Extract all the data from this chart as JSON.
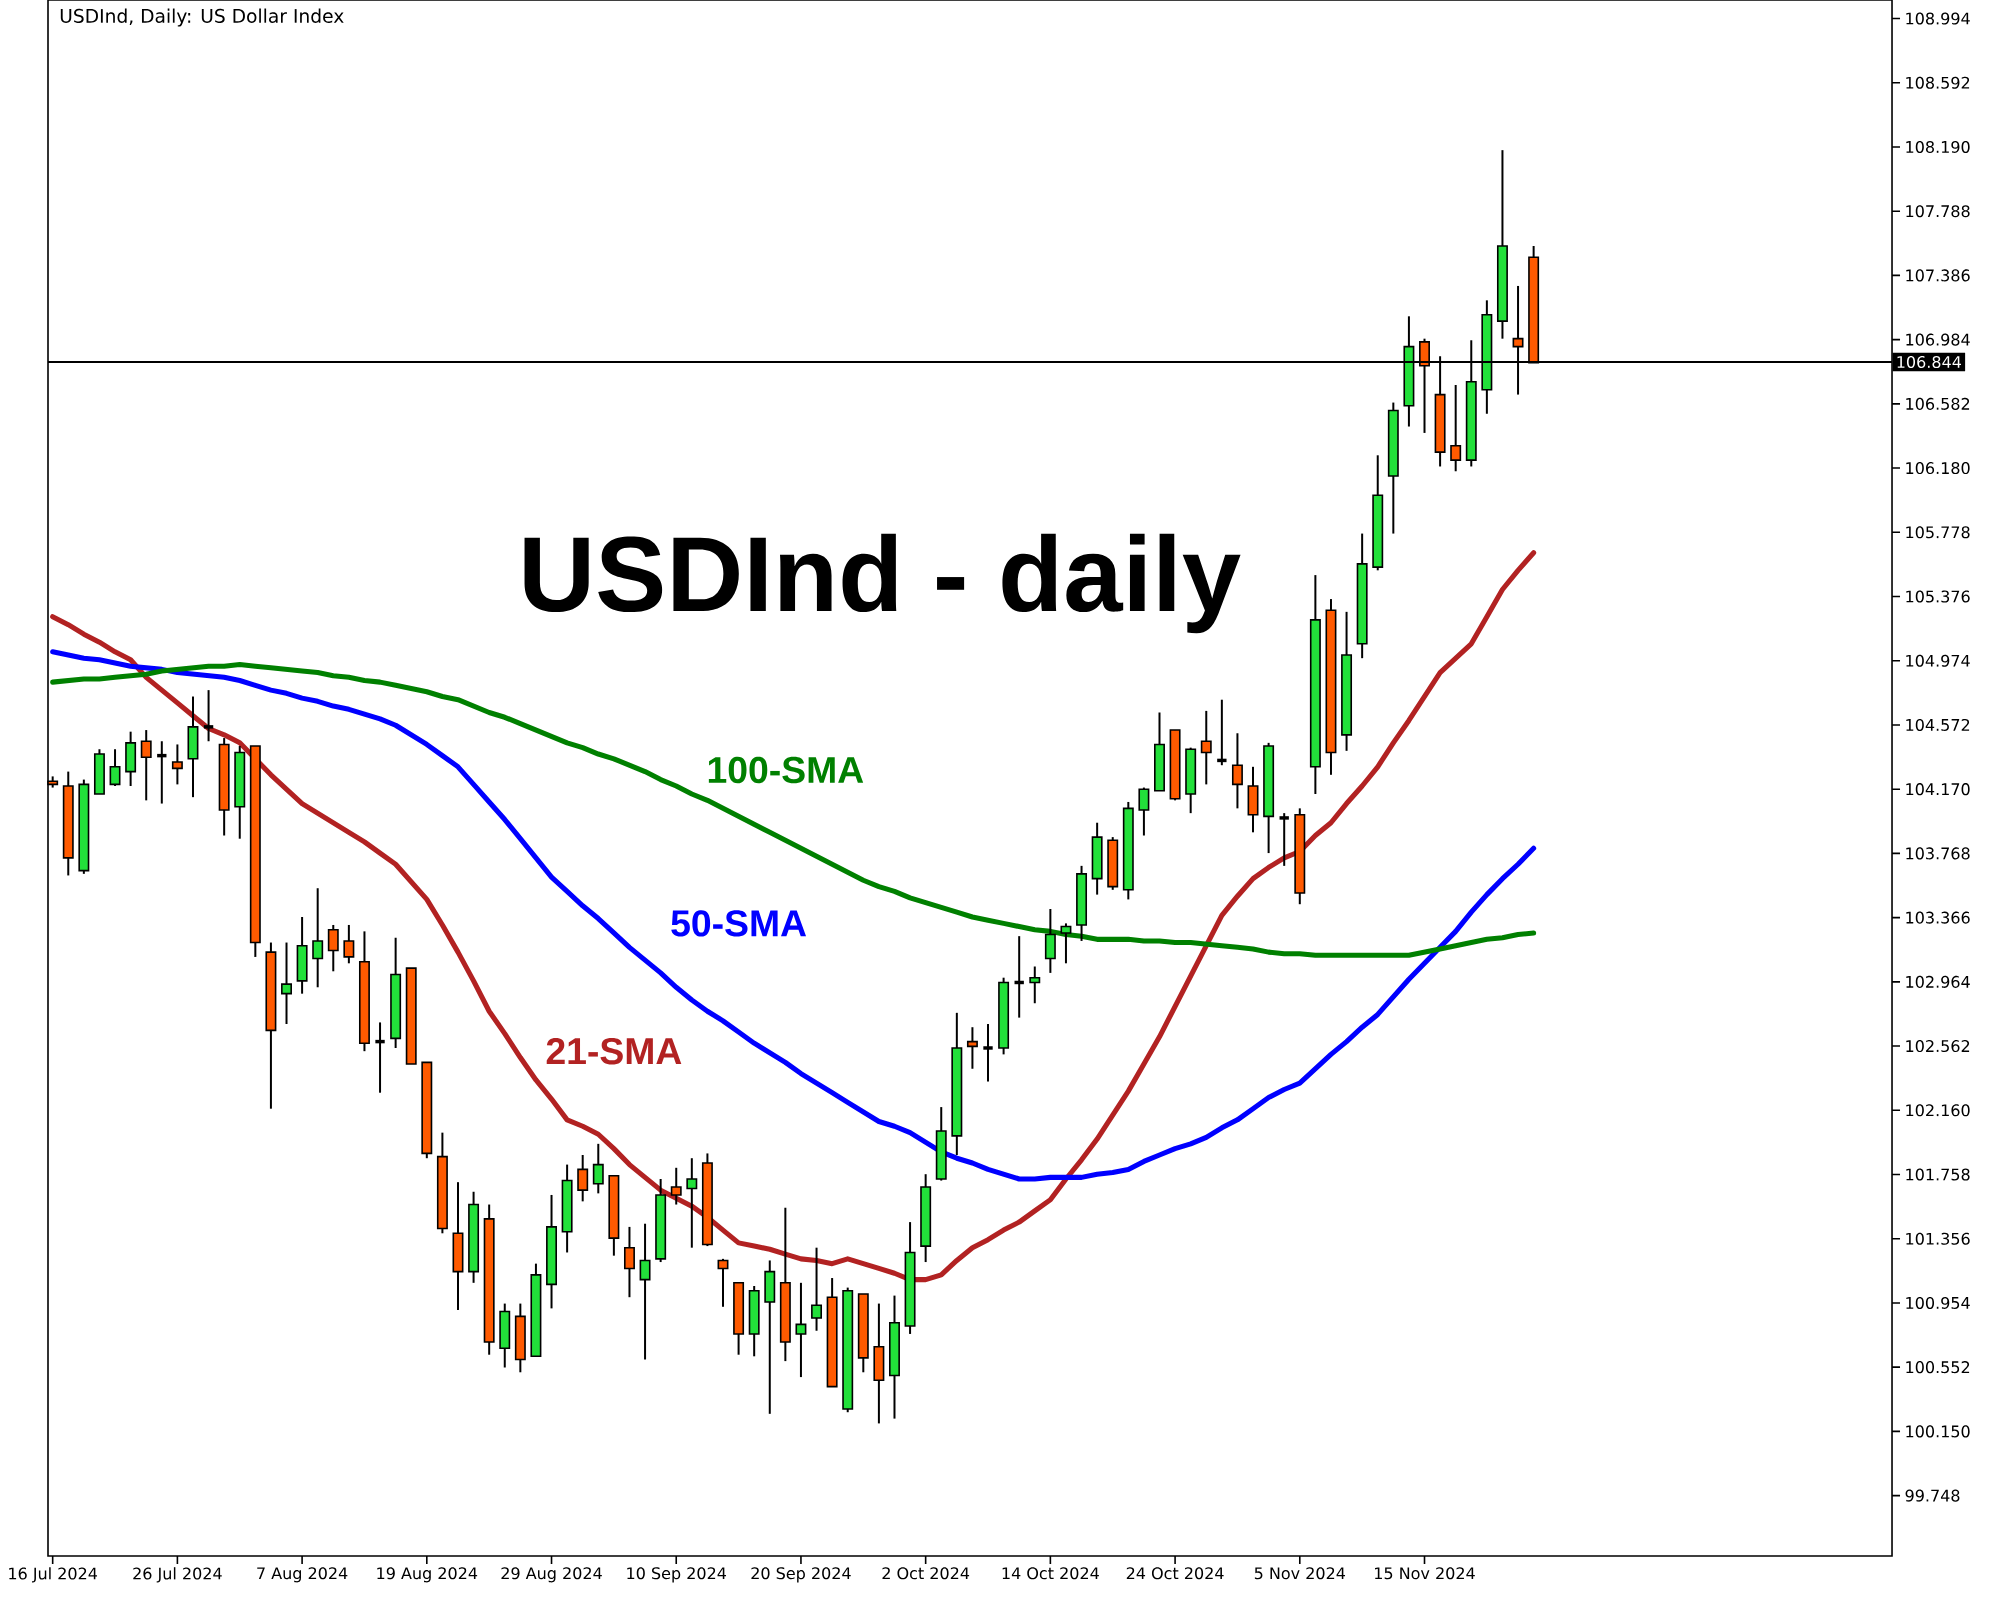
{
  "chart_data": {
    "type": "candlestick",
    "title": "USDInd - daily",
    "subtitle": "USDInd, Daily:  US Dollar Index",
    "categories": [
      "16 Jul 2024",
      null,
      null,
      null,
      null,
      null,
      null,
      null,
      "26 Jul 2024",
      null,
      null,
      null,
      null,
      null,
      null,
      null,
      "7 Aug 2024",
      null,
      null,
      null,
      null,
      null,
      null,
      null,
      "19 Aug 2024",
      null,
      null,
      null,
      null,
      null,
      null,
      null,
      "29 Aug 2024",
      null,
      null,
      null,
      null,
      null,
      null,
      null,
      "10 Sep 2024",
      null,
      null,
      null,
      null,
      null,
      null,
      null,
      "20 Sep 2024",
      null,
      null,
      null,
      null,
      null,
      null,
      null,
      "2 Oct 2024",
      null,
      null,
      null,
      null,
      null,
      null,
      null,
      "14 Oct 2024",
      null,
      null,
      null,
      null,
      null,
      null,
      null,
      "24 Oct 2024",
      null,
      null,
      null,
      null,
      null,
      null,
      null,
      "5 Nov 2024",
      null,
      null,
      null,
      null,
      null,
      null,
      null,
      "15 Nov 2024",
      null,
      null,
      null,
      null,
      null,
      null,
      null
    ],
    "ohlc": [
      [
        104.22,
        104.25,
        104.18,
        104.2
      ],
      [
        104.19,
        104.28,
        103.63,
        103.74
      ],
      [
        103.66,
        104.23,
        103.64,
        104.2
      ],
      [
        104.14,
        104.42,
        104.14,
        104.39
      ],
      [
        104.2,
        104.42,
        104.19,
        104.31
      ],
      [
        104.28,
        104.53,
        104.19,
        104.46
      ],
      [
        104.47,
        104.54,
        104.1,
        104.37
      ],
      [
        104.38,
        104.47,
        104.08,
        104.38
      ],
      [
        104.34,
        104.45,
        104.2,
        104.3
      ],
      [
        104.36,
        104.75,
        104.12,
        104.56
      ],
      [
        104.56,
        104.79,
        104.47,
        104.56
      ],
      [
        104.45,
        104.49,
        103.88,
        104.04
      ],
      [
        104.06,
        104.44,
        103.86,
        104.4
      ],
      [
        104.44,
        104.44,
        103.12,
        103.21
      ],
      [
        103.15,
        103.21,
        102.17,
        102.66
      ],
      [
        102.89,
        103.21,
        102.7,
        102.95
      ],
      [
        102.97,
        103.37,
        102.89,
        103.19
      ],
      [
        103.11,
        103.55,
        102.93,
        103.22
      ],
      [
        103.29,
        103.32,
        103.03,
        103.16
      ],
      [
        103.22,
        103.32,
        103.08,
        103.12
      ],
      [
        103.09,
        103.28,
        102.53,
        102.58
      ],
      [
        102.59,
        102.71,
        102.27,
        102.59
      ],
      [
        102.61,
        103.24,
        102.55,
        103.01
      ],
      [
        103.05,
        103.05,
        102.45,
        102.45
      ],
      [
        102.46,
        102.46,
        101.86,
        101.89
      ],
      [
        101.87,
        102.02,
        101.39,
        101.42
      ],
      [
        101.39,
        101.71,
        100.91,
        101.15
      ],
      [
        101.15,
        101.65,
        101.08,
        101.57
      ],
      [
        101.48,
        101.57,
        100.63,
        100.71
      ],
      [
        100.67,
        100.95,
        100.55,
        100.9
      ],
      [
        100.87,
        100.95,
        100.52,
        100.6
      ],
      [
        100.62,
        101.2,
        100.62,
        101.13
      ],
      [
        101.07,
        101.63,
        100.92,
        101.43
      ],
      [
        101.4,
        101.82,
        101.27,
        101.72
      ],
      [
        101.79,
        101.88,
        101.59,
        101.66
      ],
      [
        101.7,
        101.95,
        101.64,
        101.82
      ],
      [
        101.75,
        101.75,
        101.25,
        101.36
      ],
      [
        101.3,
        101.43,
        100.99,
        101.17
      ],
      [
        101.1,
        101.45,
        100.6,
        101.22
      ],
      [
        101.23,
        101.73,
        101.21,
        101.63
      ],
      [
        101.68,
        101.8,
        101.57,
        101.63
      ],
      [
        101.67,
        101.86,
        101.3,
        101.73
      ],
      [
        101.83,
        101.89,
        101.31,
        101.32
      ],
      [
        101.22,
        101.23,
        100.93,
        101.17
      ],
      [
        101.08,
        101.08,
        100.63,
        100.76
      ],
      [
        100.76,
        101.06,
        100.62,
        101.03
      ],
      [
        100.96,
        101.22,
        100.26,
        101.15
      ],
      [
        101.08,
        101.55,
        100.59,
        100.71
      ],
      [
        100.76,
        101.08,
        100.49,
        100.82
      ],
      [
        100.86,
        101.3,
        100.78,
        100.94
      ],
      [
        100.99,
        101.11,
        100.43,
        100.43
      ],
      [
        100.29,
        101.05,
        100.27,
        101.03
      ],
      [
        101.01,
        101.01,
        100.52,
        100.61
      ],
      [
        100.68,
        100.95,
        100.2,
        100.47
      ],
      [
        100.5,
        101.0,
        100.23,
        100.83
      ],
      [
        100.81,
        101.46,
        100.76,
        101.27
      ],
      [
        101.31,
        101.76,
        101.21,
        101.68
      ],
      [
        101.73,
        102.18,
        101.72,
        102.03
      ],
      [
        102.0,
        102.77,
        101.88,
        102.55
      ],
      [
        102.59,
        102.68,
        102.42,
        102.56
      ],
      [
        102.55,
        102.7,
        102.34,
        102.55
      ],
      [
        102.55,
        102.99,
        102.51,
        102.96
      ],
      [
        102.96,
        103.25,
        102.74,
        102.96
      ],
      [
        102.96,
        103.06,
        102.83,
        102.99
      ],
      [
        103.11,
        103.42,
        103.02,
        103.26
      ],
      [
        103.27,
        103.33,
        103.08,
        103.31
      ],
      [
        103.32,
        103.69,
        103.22,
        103.64
      ],
      [
        103.61,
        103.96,
        103.51,
        103.87
      ],
      [
        103.85,
        103.87,
        103.54,
        103.56
      ],
      [
        103.54,
        104.09,
        103.48,
        104.05
      ],
      [
        104.04,
        104.18,
        103.88,
        104.17
      ],
      [
        104.16,
        104.65,
        104.16,
        104.45
      ],
      [
        104.54,
        104.54,
        104.1,
        104.11
      ],
      [
        104.14,
        104.43,
        104.02,
        104.42
      ],
      [
        104.47,
        104.66,
        104.2,
        104.4
      ],
      [
        104.35,
        104.73,
        104.32,
        104.35
      ],
      [
        104.32,
        104.52,
        104.05,
        104.2
      ],
      [
        104.19,
        104.31,
        103.9,
        104.01
      ],
      [
        104.0,
        104.46,
        103.77,
        104.44
      ],
      [
        103.99,
        104.02,
        103.69,
        103.99
      ],
      [
        104.01,
        104.05,
        103.45,
        103.52
      ],
      [
        104.31,
        105.51,
        104.14,
        105.23
      ],
      [
        105.29,
        105.36,
        104.26,
        104.4
      ],
      [
        104.51,
        105.28,
        104.41,
        105.01
      ],
      [
        105.08,
        105.77,
        104.99,
        105.58
      ],
      [
        105.56,
        106.26,
        105.54,
        106.01
      ],
      [
        106.13,
        106.59,
        105.77,
        106.54
      ],
      [
        106.57,
        107.13,
        106.44,
        106.94
      ],
      [
        106.97,
        106.99,
        106.4,
        106.82
      ],
      [
        106.64,
        106.88,
        106.19,
        106.28
      ],
      [
        106.32,
        106.7,
        106.16,
        106.23
      ],
      [
        106.23,
        106.98,
        106.19,
        106.72
      ],
      [
        106.67,
        107.23,
        106.52,
        107.14
      ],
      [
        107.1,
        108.17,
        106.99,
        107.57
      ],
      [
        106.99,
        107.32,
        106.64,
        106.94
      ],
      [
        107.5,
        107.57,
        106.84,
        106.84
      ]
    ],
    "colors": [
      "#ff5a00",
      "#ff5a00",
      "#22e03a",
      "#22e03a",
      "#22e03a",
      "#22e03a",
      "#ff5a00",
      "#000000",
      "#ff5a00",
      "#22e03a",
      "#000000",
      "#ff5a00",
      "#22e03a",
      "#ff5a00",
      "#ff5a00",
      "#22e03a",
      "#22e03a",
      "#22e03a",
      "#ff5a00",
      "#ff5a00",
      "#ff5a00",
      "#000000",
      "#22e03a",
      "#ff5a00",
      "#ff5a00",
      "#ff5a00",
      "#ff5a00",
      "#22e03a",
      "#ff5a00",
      "#22e03a",
      "#ff5a00",
      "#22e03a",
      "#22e03a",
      "#22e03a",
      "#ff5a00",
      "#22e03a",
      "#ff5a00",
      "#ff5a00",
      "#22e03a",
      "#22e03a",
      "#ff5a00",
      "#22e03a",
      "#ff5a00",
      "#ff5a00",
      "#ff5a00",
      "#22e03a",
      "#22e03a",
      "#ff5a00",
      "#22e03a",
      "#22e03a",
      "#ff5a00",
      "#22e03a",
      "#ff5a00",
      "#ff5a00",
      "#22e03a",
      "#22e03a",
      "#22e03a",
      "#22e03a",
      "#22e03a",
      "#ff5a00",
      "#000000",
      "#22e03a",
      "#000000",
      "#22e03a",
      "#22e03a",
      "#22e03a",
      "#22e03a",
      "#22e03a",
      "#ff5a00",
      "#22e03a",
      "#22e03a",
      "#22e03a",
      "#ff5a00",
      "#22e03a",
      "#ff5a00",
      "#000000",
      "#ff5a00",
      "#ff5a00",
      "#22e03a",
      "#000000",
      "#ff5a00",
      "#22e03a",
      "#ff5a00",
      "#22e03a",
      "#22e03a",
      "#22e03a",
      "#22e03a",
      "#22e03a",
      "#ff5a00",
      "#ff5a00",
      "#ff5a00",
      "#22e03a",
      "#22e03a",
      "#22e03a",
      "#ff5a00",
      "#ff5a00"
    ],
    "series": [
      {
        "name": "21-SMA",
        "type": "line",
        "color": "#b22222",
        "values": [
          105.25,
          105.2,
          105.14,
          105.09,
          105.03,
          104.98,
          104.87,
          104.79,
          104.71,
          104.63,
          104.55,
          104.51,
          104.46,
          104.36,
          104.26,
          104.17,
          104.08,
          104.02,
          103.96,
          103.9,
          103.84,
          103.77,
          103.7,
          103.59,
          103.48,
          103.32,
          103.15,
          102.97,
          102.78,
          102.64,
          102.49,
          102.35,
          102.23,
          102.1,
          102.06,
          102.01,
          101.92,
          101.82,
          101.74,
          101.66,
          101.61,
          101.56,
          101.49,
          101.41,
          101.33,
          101.31,
          101.29,
          101.26,
          101.23,
          101.22,
          101.2,
          101.23,
          101.2,
          101.17,
          101.14,
          101.1,
          101.1,
          101.13,
          101.22,
          101.3,
          101.35,
          101.41,
          101.46,
          101.53,
          101.6,
          101.73,
          101.85,
          101.98,
          102.13,
          102.28,
          102.45,
          102.62,
          102.81,
          103.0,
          103.19,
          103.38,
          103.5,
          103.61,
          103.68,
          103.74,
          103.78,
          103.88,
          103.96,
          104.08,
          104.19,
          104.31,
          104.46,
          104.6,
          104.75,
          104.9,
          104.99,
          105.08,
          105.25,
          105.42,
          105.54,
          105.65
        ]
      },
      {
        "name": "50-SMA",
        "type": "line",
        "color": "#0000ff",
        "values": [
          105.03,
          105.01,
          104.99,
          104.98,
          104.96,
          104.94,
          104.93,
          104.92,
          104.9,
          104.89,
          104.88,
          104.87,
          104.85,
          104.82,
          104.79,
          104.77,
          104.74,
          104.72,
          104.69,
          104.67,
          104.64,
          104.61,
          104.57,
          104.51,
          104.45,
          104.38,
          104.31,
          104.2,
          104.09,
          103.98,
          103.86,
          103.74,
          103.62,
          103.53,
          103.44,
          103.36,
          103.27,
          103.18,
          103.1,
          103.02,
          102.93,
          102.85,
          102.78,
          102.72,
          102.65,
          102.58,
          102.52,
          102.46,
          102.39,
          102.33,
          102.27,
          102.21,
          102.15,
          102.09,
          102.06,
          102.02,
          101.96,
          101.9,
          101.86,
          101.83,
          101.79,
          101.76,
          101.73,
          101.73,
          101.74,
          101.74,
          101.74,
          101.76,
          101.77,
          101.79,
          101.84,
          101.88,
          101.92,
          101.95,
          101.99,
          102.05,
          102.1,
          102.17,
          102.24,
          102.29,
          102.33,
          102.42,
          102.51,
          102.59,
          102.68,
          102.76,
          102.87,
          102.98,
          103.08,
          103.18,
          103.28,
          103.4,
          103.51,
          103.61,
          103.7,
          103.8
        ]
      },
      {
        "name": "100-SMA",
        "type": "line",
        "color": "#008000",
        "values": [
          104.84,
          104.85,
          104.86,
          104.86,
          104.87,
          104.88,
          104.89,
          104.91,
          104.92,
          104.93,
          104.94,
          104.94,
          104.95,
          104.94,
          104.93,
          104.92,
          104.91,
          104.9,
          104.88,
          104.87,
          104.85,
          104.84,
          104.82,
          104.8,
          104.78,
          104.75,
          104.73,
          104.69,
          104.65,
          104.62,
          104.58,
          104.54,
          104.5,
          104.46,
          104.43,
          104.39,
          104.36,
          104.32,
          104.28,
          104.23,
          104.19,
          104.14,
          104.1,
          104.05,
          104.0,
          103.95,
          103.9,
          103.85,
          103.8,
          103.75,
          103.7,
          103.65,
          103.6,
          103.56,
          103.53,
          103.49,
          103.46,
          103.43,
          103.4,
          103.37,
          103.35,
          103.33,
          103.31,
          103.29,
          103.28,
          103.26,
          103.25,
          103.23,
          103.23,
          103.23,
          103.22,
          103.22,
          103.21,
          103.21,
          103.2,
          103.19,
          103.18,
          103.17,
          103.15,
          103.14,
          103.14,
          103.13,
          103.13,
          103.13,
          103.13,
          103.13,
          103.13,
          103.13,
          103.15,
          103.17,
          103.19,
          103.21,
          103.23,
          103.24,
          103.26,
          103.27
        ]
      }
    ],
    "ylim": [
      99.37,
      109.11
    ],
    "yticks": [
      99.748,
      {
        "value": 100.15,
        "label": "100.150"
      },
      100.552,
      100.954,
      101.356,
      101.758,
      {
        "value": 102.16,
        "label": "102.160"
      },
      102.562,
      102.964,
      103.366,
      103.768,
      {
        "value": 104.17,
        "label": "104.170"
      },
      104.572,
      104.974,
      105.376,
      105.778,
      {
        "value": 106.18,
        "label": "106.180"
      },
      106.582,
      106.984,
      107.386,
      107.788,
      {
        "value": 108.19,
        "label": "108.190"
      },
      108.592,
      108.994
    ],
    "ref_lines": [
      {
        "axis": "y",
        "value": 106.844,
        "label": "106.844",
        "color": "#000000"
      }
    ]
  }
}
